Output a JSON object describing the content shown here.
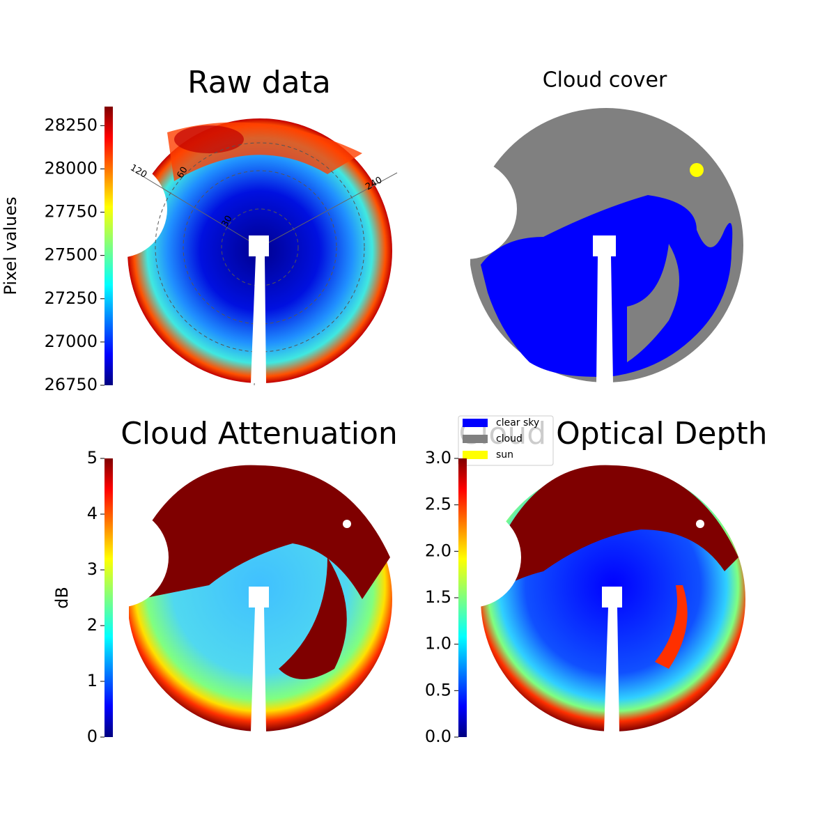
{
  "chart_data": [
    {
      "type": "image",
      "title": "Raw data",
      "colorbar_label": "Pixel values",
      "clim": [
        26750,
        28360
      ],
      "cticks": [
        26750,
        27000,
        27250,
        27500,
        27750,
        28000,
        28250
      ],
      "annotations": [
        "120",
        "60",
        "240",
        "30"
      ]
    },
    {
      "type": "image",
      "title": "Cloud cover",
      "series": [
        {
          "name": "clear sky",
          "color": "#0000ff"
        },
        {
          "name": "cloud",
          "color": "#808080"
        },
        {
          "name": "sun",
          "color": "#ffff00"
        }
      ]
    },
    {
      "type": "image",
      "title": "Cloud Attenuation",
      "colorbar_label": "dB",
      "clim": [
        0,
        5
      ],
      "cticks": [
        0,
        1,
        2,
        3,
        4,
        5
      ]
    },
    {
      "type": "image",
      "title": "Cloud Optical Depth",
      "clim": [
        0,
        3
      ],
      "cticks": [
        {
          "value": 0,
          "label": "0.0"
        },
        {
          "value": 0.5,
          "label": "0.5"
        },
        {
          "value": 1,
          "label": "1.0"
        },
        {
          "value": 1.5,
          "label": "1.5"
        },
        {
          "value": 2,
          "label": "2.0"
        },
        {
          "value": 2.5,
          "label": "2.5"
        },
        {
          "value": 3,
          "label": "3.0"
        }
      ]
    }
  ]
}
